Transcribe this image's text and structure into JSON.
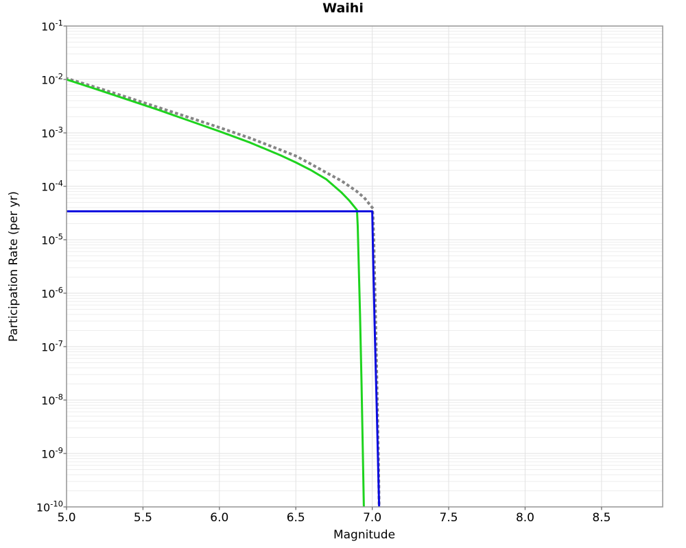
{
  "chart_data": {
    "type": "line",
    "title": "Waihi",
    "xlabel": "Magnitude",
    "ylabel": "Participation Rate (per yr)",
    "x_axis": {
      "min": 5.0,
      "max": 8.9,
      "ticks": [
        5.0,
        5.5,
        6.0,
        6.5,
        7.0,
        7.5,
        8.0,
        8.5
      ],
      "tick_decimals": 1
    },
    "y_axis": {
      "scale": "log",
      "min": 1e-10,
      "max": 0.1,
      "tick_exponents": [
        -1,
        -2,
        -3,
        -4,
        -5,
        -6,
        -7,
        -8,
        -9,
        -10
      ],
      "tick_base": "10"
    },
    "grid": {
      "major": true,
      "minor": true,
      "major_color": "#e2e2e2",
      "minor_color": "#ededed",
      "border_color": "#9b9b9b"
    },
    "legend": {
      "visible": false
    },
    "series": [
      {
        "name": "gray-dotted-curve",
        "style": "dotted",
        "color": "#858585",
        "width": 4,
        "points": [
          [
            5.0,
            0.0105
          ],
          [
            5.2,
            0.007
          ],
          [
            5.4,
            0.0046
          ],
          [
            5.6,
            0.003
          ],
          [
            5.8,
            0.00195
          ],
          [
            6.0,
            0.00126
          ],
          [
            6.2,
            0.0008
          ],
          [
            6.4,
            0.00048
          ],
          [
            6.5,
            0.00037
          ],
          [
            6.6,
            0.00026
          ],
          [
            6.7,
            0.00018
          ],
          [
            6.8,
            0.000126
          ],
          [
            6.9,
            8e-05
          ],
          [
            6.95,
            6e-05
          ],
          [
            7.0,
            4e-05
          ],
          [
            7.005,
            2.8e-05
          ],
          [
            7.01,
            1e-05
          ],
          [
            7.02,
            6e-07
          ],
          [
            7.03,
            2.5e-08
          ],
          [
            7.04,
            1e-09
          ],
          [
            7.045,
            1e-10
          ]
        ]
      },
      {
        "name": "green-solid-curve",
        "style": "solid",
        "color": "#1ed31e",
        "width": 3,
        "points": [
          [
            5.0,
            0.01
          ],
          [
            5.2,
            0.0065
          ],
          [
            5.4,
            0.0042
          ],
          [
            5.6,
            0.0027
          ],
          [
            5.8,
            0.0017
          ],
          [
            6.0,
            0.00107
          ],
          [
            6.2,
            0.00066
          ],
          [
            6.4,
            0.00038
          ],
          [
            6.5,
            0.00028
          ],
          [
            6.6,
            0.0002
          ],
          [
            6.7,
            0.000135
          ],
          [
            6.8,
            7.6e-05
          ],
          [
            6.85,
            5.4e-05
          ],
          [
            6.9,
            3.6e-05
          ],
          [
            6.905,
            1.8e-05
          ],
          [
            6.91,
            5e-06
          ],
          [
            6.92,
            4e-07
          ],
          [
            6.93,
            2e-08
          ],
          [
            6.94,
            6e-10
          ],
          [
            6.945,
            1e-10
          ]
        ]
      },
      {
        "name": "blue-solid-line",
        "style": "solid",
        "color": "#0b0bdf",
        "width": 3,
        "points": [
          [
            5.0,
            3.4e-05
          ],
          [
            7.0,
            3.4e-05
          ],
          [
            7.005,
            6e-06
          ],
          [
            7.015,
            3e-07
          ],
          [
            7.03,
            6e-09
          ],
          [
            7.045,
            1e-10
          ]
        ]
      }
    ]
  }
}
